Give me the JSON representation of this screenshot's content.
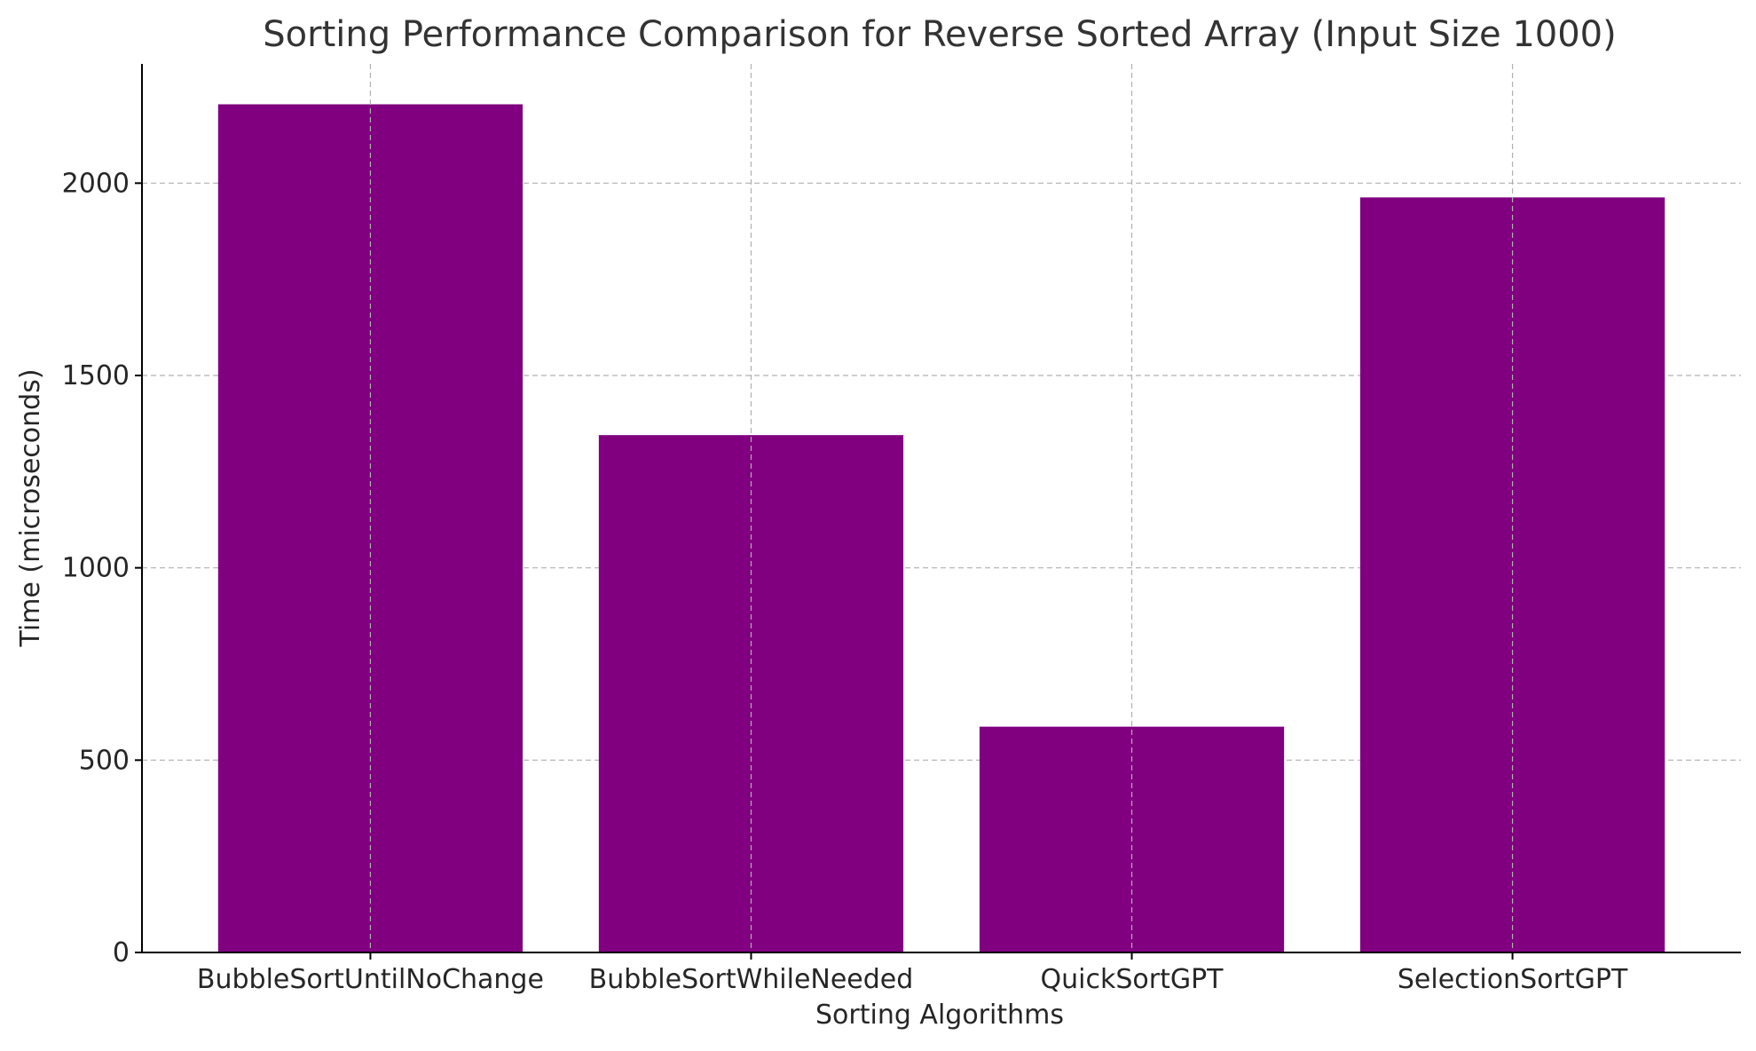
{
  "chart_data": {
    "type": "bar",
    "title": "Sorting Performance Comparison for Reverse Sorted Array (Input Size 1000)",
    "xlabel": "Sorting Algorithms",
    "ylabel": "Time (microseconds)",
    "categories": [
      "BubbleSortUntilNoChange",
      "BubbleSortWhileNeeded",
      "QuickSortGPT",
      "SelectionSortGPT"
    ],
    "values": [
      2205,
      1345,
      587,
      1963
    ],
    "ylim": [
      0,
      2310
    ],
    "yticks": [
      0,
      500,
      1000,
      1500,
      2000
    ],
    "grid": true,
    "bar_color": "#800080"
  }
}
